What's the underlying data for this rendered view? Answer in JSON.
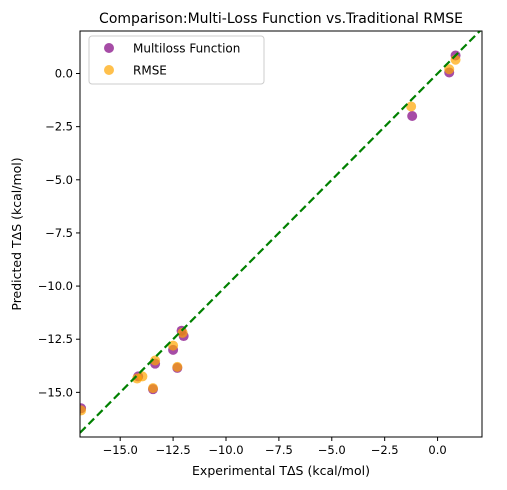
{
  "chart_data": {
    "type": "scatter",
    "title": "Comparison:Multi-Loss Function vs.Traditional RMSE",
    "xlabel": "Experimental TΔS (kcal/mol)",
    "ylabel": "Predicted TΔS (kcal/mol)",
    "xlim": [
      -16.9,
      2.1
    ],
    "ylim": [
      -17.1,
      2.0
    ],
    "x_ticks": [
      -15.0,
      -12.5,
      -10.0,
      -7.5,
      -5.0,
      -2.5,
      0.0
    ],
    "x_tick_labels": [
      "−15.0",
      "−12.5",
      "−10.0",
      "−7.5",
      "−5.0",
      "−2.5",
      "0.0"
    ],
    "y_ticks": [
      -15.0,
      -12.5,
      -10.0,
      -7.5,
      -5.0,
      -2.5,
      0.0
    ],
    "y_tick_labels": [
      "−15.0",
      "−12.5",
      "−10.0",
      "−7.5",
      "−5.0",
      "−2.5",
      "0.0"
    ],
    "grid": false,
    "legend_position": "top-left",
    "reference_line": {
      "style": "dashed",
      "color": "#008000",
      "slope": 1,
      "intercept": 0
    },
    "series": [
      {
        "name": "Multiloss Function",
        "color": "#800080",
        "points": [
          [
            -16.85,
            -15.75
          ],
          [
            -14.15,
            -14.25
          ],
          [
            -13.45,
            -14.85
          ],
          [
            -13.35,
            -13.65
          ],
          [
            -12.5,
            -13.0
          ],
          [
            -12.3,
            -13.85
          ],
          [
            -12.1,
            -12.1
          ],
          [
            -12.0,
            -12.35
          ],
          [
            -1.2,
            -2.0
          ],
          [
            0.55,
            0.05
          ],
          [
            0.85,
            0.85
          ]
        ]
      },
      {
        "name": "RMSE",
        "color": "#FFA500",
        "points": [
          [
            -16.85,
            -15.85
          ],
          [
            -14.2,
            -14.35
          ],
          [
            -13.95,
            -14.25
          ],
          [
            -13.45,
            -14.8
          ],
          [
            -13.35,
            -13.5
          ],
          [
            -12.5,
            -12.8
          ],
          [
            -12.3,
            -13.8
          ],
          [
            -12.05,
            -12.2
          ],
          [
            -1.25,
            -1.55
          ],
          [
            0.55,
            0.2
          ],
          [
            0.85,
            0.65
          ]
        ]
      }
    ]
  }
}
